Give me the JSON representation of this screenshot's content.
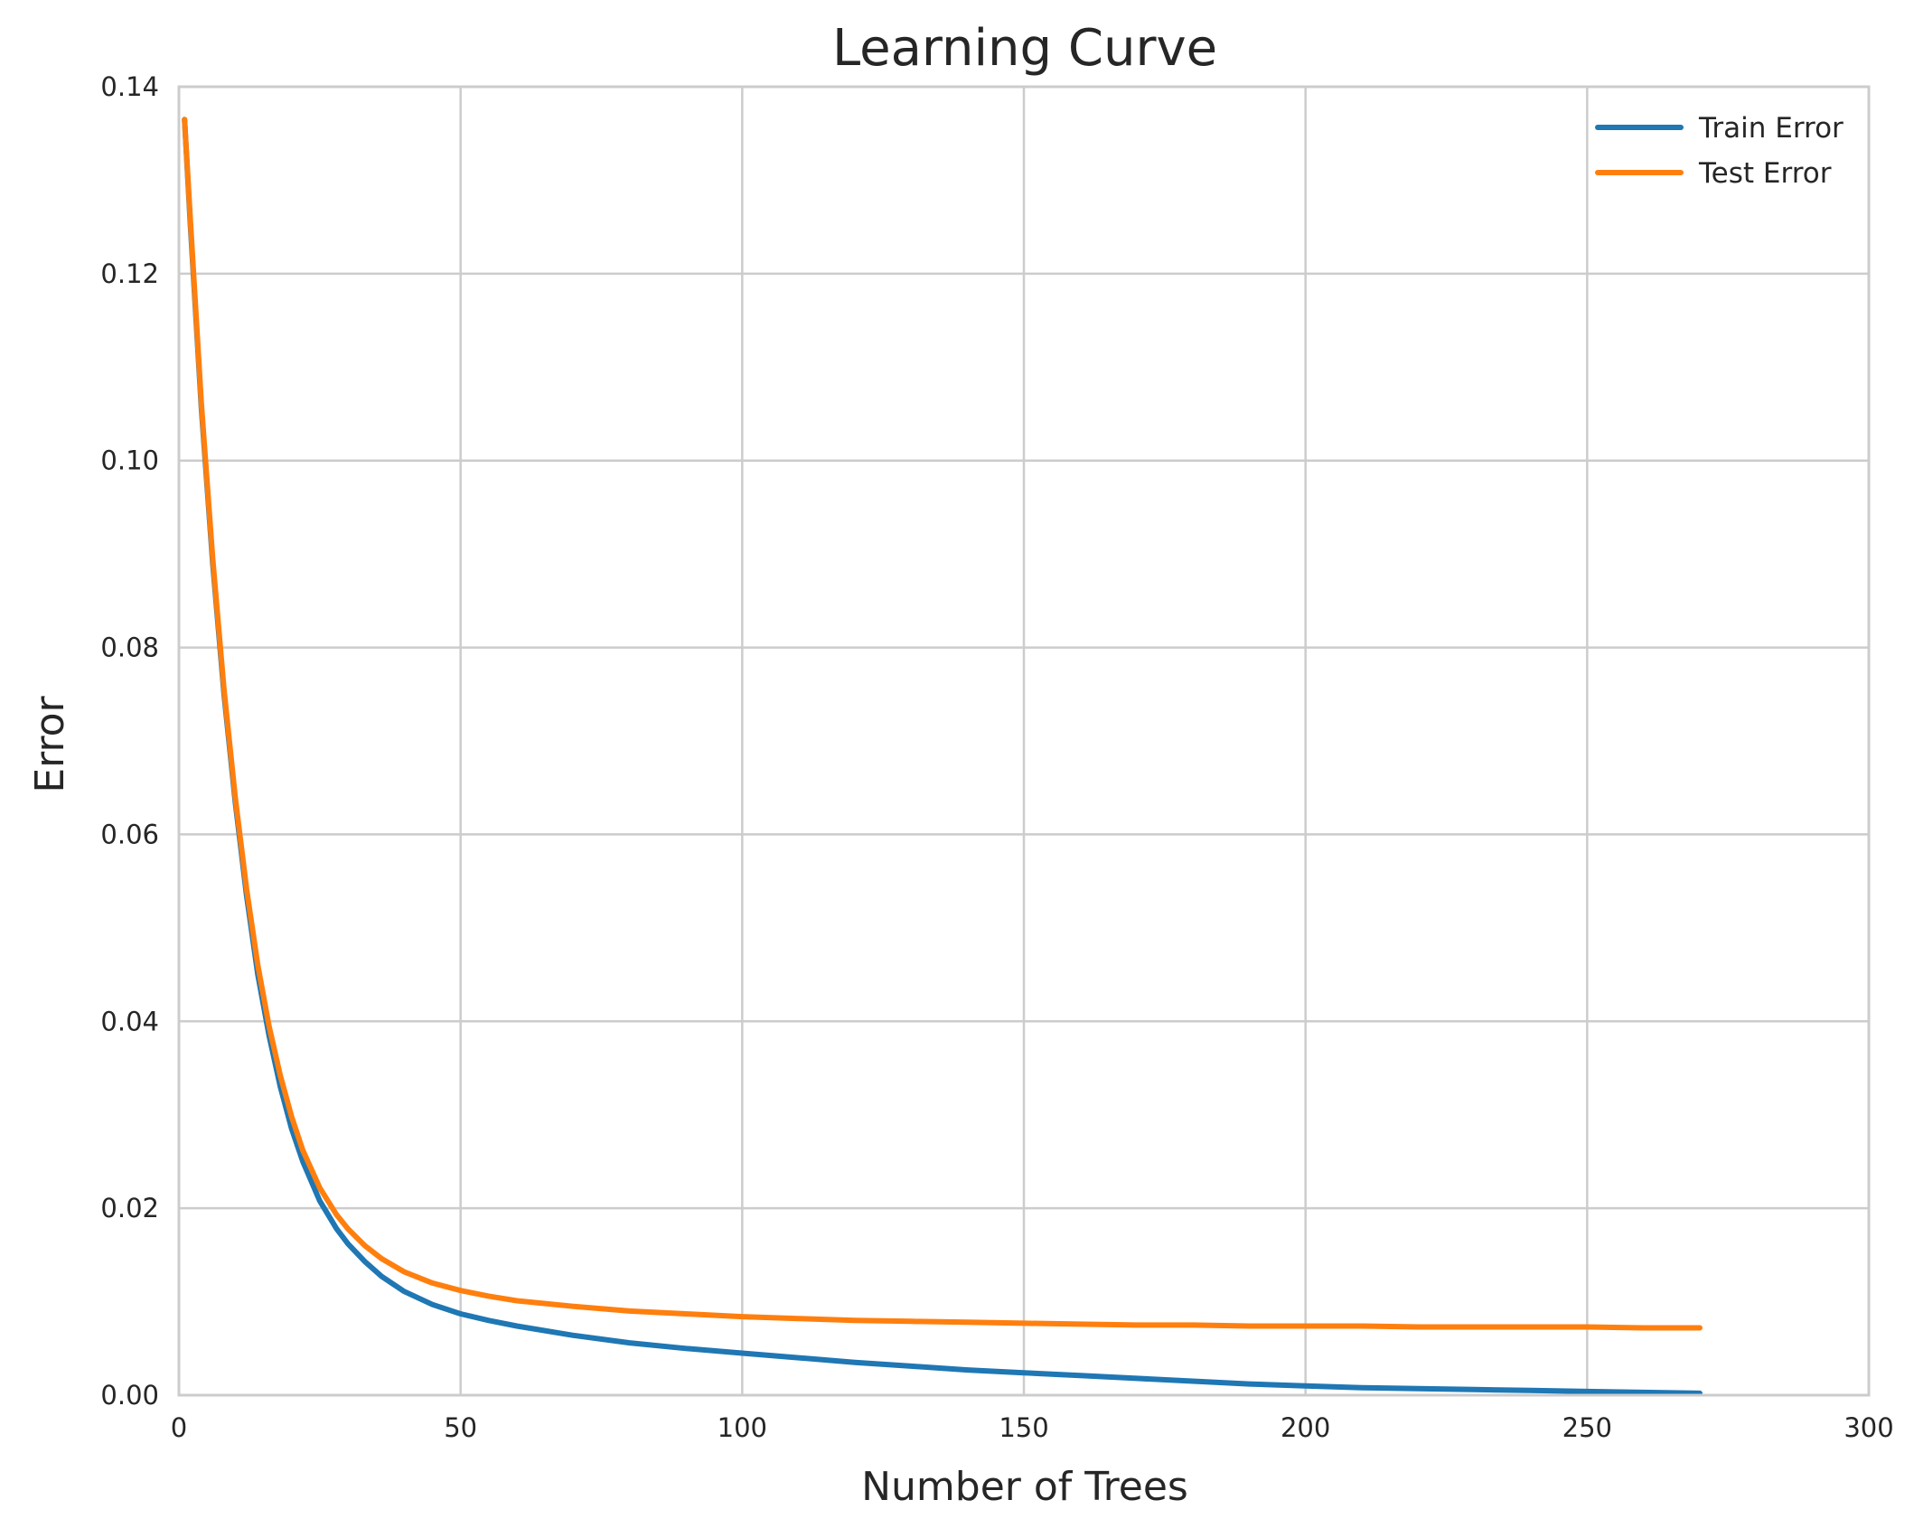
{
  "chart_data": {
    "type": "line",
    "title": "Learning Curve",
    "xlabel": "Number of Trees",
    "ylabel": "Error",
    "xlim": [
      0,
      300
    ],
    "ylim": [
      0,
      0.14
    ],
    "xticks": [
      0,
      50,
      100,
      150,
      200,
      250,
      300
    ],
    "yticks": [
      0.0,
      0.02,
      0.04,
      0.06,
      0.08,
      0.1,
      0.12,
      0.14
    ],
    "ytick_labels": [
      "0.00",
      "0.02",
      "0.04",
      "0.06",
      "0.08",
      "0.10",
      "0.12",
      "0.14"
    ],
    "grid": true,
    "legend_position": "top-right",
    "x": [
      1,
      2,
      4,
      6,
      8,
      10,
      12,
      14,
      16,
      18,
      20,
      22,
      25,
      28,
      30,
      33,
      36,
      40,
      45,
      50,
      55,
      60,
      70,
      80,
      90,
      100,
      110,
      120,
      130,
      140,
      150,
      160,
      170,
      180,
      190,
      200,
      210,
      220,
      230,
      240,
      250,
      260,
      270
    ],
    "series": [
      {
        "name": "Train Error",
        "color": "#1f77b4",
        "values": [
          0.1365,
          0.1255,
          0.1055,
          0.089,
          0.075,
          0.0635,
          0.0535,
          0.045,
          0.0385,
          0.033,
          0.0285,
          0.025,
          0.0208,
          0.0178,
          0.0162,
          0.0143,
          0.0127,
          0.0111,
          0.0097,
          0.0087,
          0.008,
          0.0074,
          0.0064,
          0.0056,
          0.005,
          0.0045,
          0.004,
          0.0035,
          0.0031,
          0.0027,
          0.0024,
          0.0021,
          0.0018,
          0.0015,
          0.0012,
          0.001,
          0.0008,
          0.0007,
          0.0006,
          0.0005,
          0.0004,
          0.0003,
          0.0002
        ]
      },
      {
        "name": "Test Error",
        "color": "#ff7f0e",
        "values": [
          0.1365,
          0.126,
          0.106,
          0.0895,
          0.0755,
          0.064,
          0.0542,
          0.046,
          0.0395,
          0.0342,
          0.0298,
          0.0262,
          0.0222,
          0.0193,
          0.0178,
          0.016,
          0.0146,
          0.0132,
          0.012,
          0.0112,
          0.0106,
          0.0101,
          0.0095,
          0.009,
          0.0087,
          0.0084,
          0.0082,
          0.008,
          0.0079,
          0.0078,
          0.0077,
          0.0076,
          0.0075,
          0.0075,
          0.0074,
          0.0074,
          0.0074,
          0.0073,
          0.0073,
          0.0073,
          0.0073,
          0.0072,
          0.0072
        ]
      }
    ]
  }
}
